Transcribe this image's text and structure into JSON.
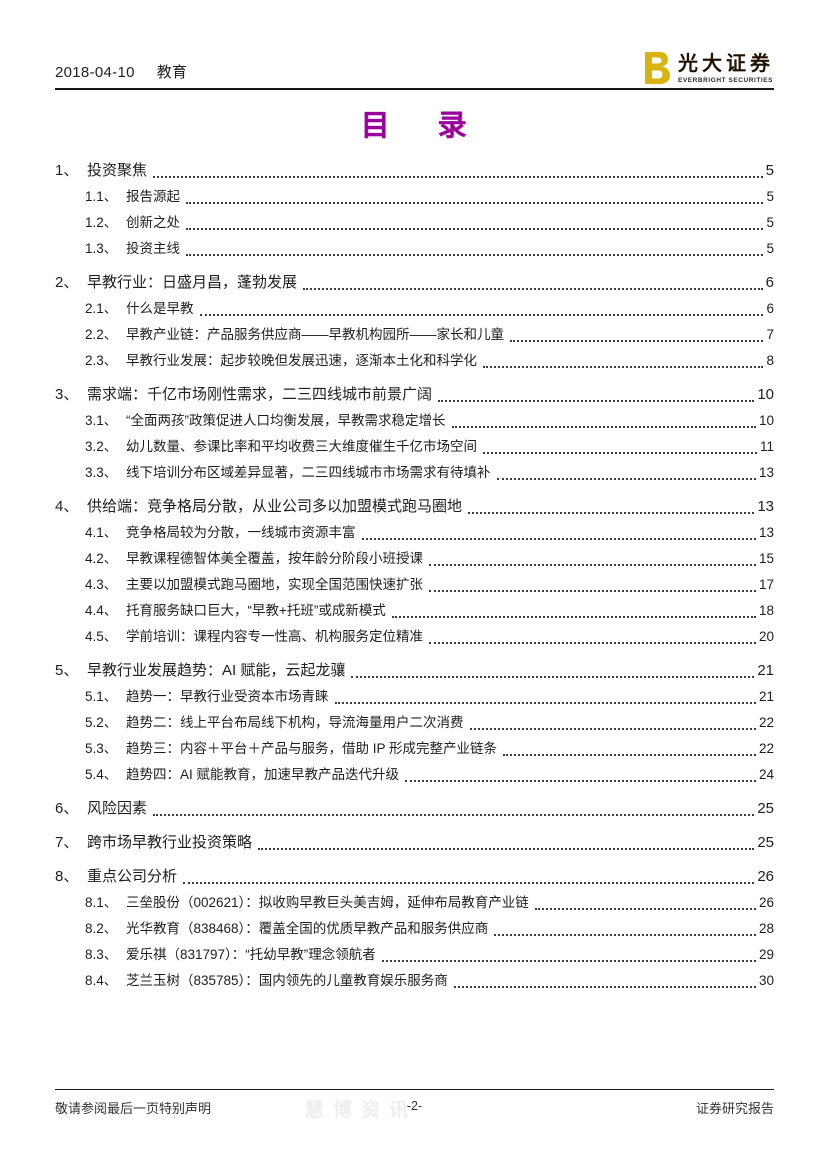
{
  "header": {
    "date": "2018-04-10",
    "category": "教育"
  },
  "logo": {
    "brand_cn": "光大证券",
    "brand_en": "EVERBRIGHT SECURITIES",
    "gold_color": "#D9B410"
  },
  "title": "目 录",
  "title_color": "#99019B",
  "toc": {
    "entries": [
      {
        "level": 1,
        "num": "1、",
        "title": "投资聚焦",
        "page": "5"
      },
      {
        "level": 2,
        "num": "1.1、",
        "title": "报告源起",
        "page": "5"
      },
      {
        "level": 2,
        "num": "1.2、",
        "title": "创新之处",
        "page": "5"
      },
      {
        "level": 2,
        "num": "1.3、",
        "title": "投资主线",
        "page": "5"
      },
      {
        "level": 1,
        "num": "2、",
        "title": "早教行业：日盛月昌，蓬勃发展",
        "page": "6"
      },
      {
        "level": 2,
        "num": "2.1、",
        "title": "什么是早教",
        "page": "6"
      },
      {
        "level": 2,
        "num": "2.2、",
        "title": "早教产业链：产品服务供应商——早教机构园所——家长和儿童",
        "page": "7"
      },
      {
        "level": 2,
        "num": "2.3、",
        "title": "早教行业发展：起步较晚但发展迅速，逐渐本土化和科学化",
        "page": "8"
      },
      {
        "level": 1,
        "num": "3、",
        "title": "需求端：千亿市场刚性需求，二三四线城市前景广阔",
        "page": "10"
      },
      {
        "level": 2,
        "num": "3.1、",
        "title": "“全面两孩”政策促进人口均衡发展，早教需求稳定增长",
        "page": "10"
      },
      {
        "level": 2,
        "num": "3.2、",
        "title": "幼儿数量、参课比率和平均收费三大维度催生千亿市场空间",
        "page": "11"
      },
      {
        "level": 2,
        "num": "3.3、",
        "title": "线下培训分布区域差异显著，二三四线城市市场需求有待填补",
        "page": "13"
      },
      {
        "level": 1,
        "num": "4、",
        "title": "供给端：竞争格局分散，从业公司多以加盟模式跑马圈地",
        "page": "13"
      },
      {
        "level": 2,
        "num": "4.1、",
        "title": "竞争格局较为分散，一线城市资源丰富",
        "page": "13"
      },
      {
        "level": 2,
        "num": "4.2、",
        "title": "早教课程德智体美全覆盖，按年龄分阶段小班授课",
        "page": "15"
      },
      {
        "level": 2,
        "num": "4.3、",
        "title": "主要以加盟模式跑马圈地，实现全国范围快速扩张",
        "page": "17"
      },
      {
        "level": 2,
        "num": "4.4、",
        "title": "托育服务缺口巨大，“早教+托班”或成新模式",
        "page": "18"
      },
      {
        "level": 2,
        "num": "4.5、",
        "title": "学前培训：课程内容专一性高、机构服务定位精准",
        "page": "20"
      },
      {
        "level": 1,
        "num": "5、",
        "title": "早教行业发展趋势：AI 赋能，云起龙骧",
        "page": "21"
      },
      {
        "level": 2,
        "num": "5.1、",
        "title": "趋势一：早教行业受资本市场青睐",
        "page": "21"
      },
      {
        "level": 2,
        "num": "5.2、",
        "title": "趋势二：线上平台布局线下机构，导流海量用户二次消费",
        "page": "22"
      },
      {
        "level": 2,
        "num": "5.3、",
        "title": "趋势三：内容＋平台＋产品与服务，借助 IP 形成完整产业链条",
        "page": "22"
      },
      {
        "level": 2,
        "num": "5.4、",
        "title": "趋势四：AI 赋能教育，加速早教产品迭代升级",
        "page": "24"
      },
      {
        "level": 1,
        "num": "6、",
        "title": "风险因素",
        "page": "25"
      },
      {
        "level": 1,
        "num": "7、",
        "title": "跨市场早教行业投资策略",
        "page": "25"
      },
      {
        "level": 1,
        "num": "8、",
        "title": "重点公司分析",
        "page": "26"
      },
      {
        "level": 2,
        "num": "8.1、",
        "title": "三垒股份（002621）：拟收购早教巨头美吉姆，延伸布局教育产业链",
        "page": "26"
      },
      {
        "level": 2,
        "num": "8.2、",
        "title": "光华教育（838468）：覆盖全国的优质早教产品和服务供应商",
        "page": "28"
      },
      {
        "level": 2,
        "num": "8.3、",
        "title": "爱乐祺（831797）：“托幼早教”理念领航者",
        "page": "29"
      },
      {
        "level": 2,
        "num": "8.4、",
        "title": "芝兰玉树（835785）：国内领先的儿童教育娱乐服务商",
        "page": "30"
      }
    ]
  },
  "footer": {
    "left": "敬请参阅最后一页特别声明",
    "center": "-2-",
    "right": "证券研究报告",
    "watermark": "慧博资讯"
  }
}
